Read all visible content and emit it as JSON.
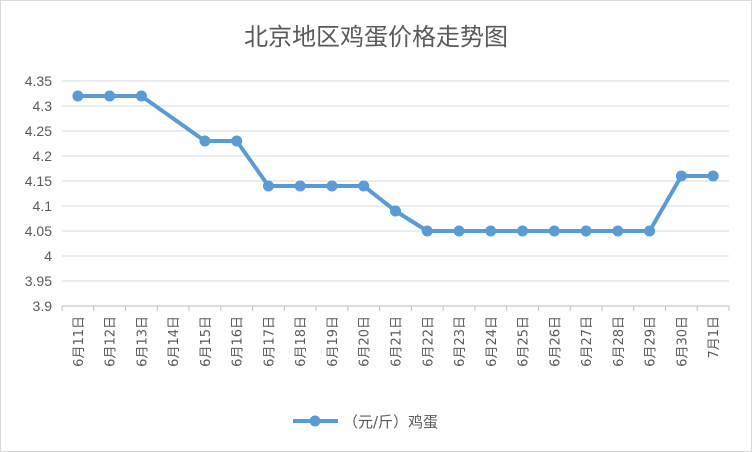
{
  "chart_data": {
    "type": "line",
    "title": "北京地区鸡蛋价格走势图",
    "xlabel": "",
    "ylabel": "",
    "categories": [
      "6月11日",
      "6月12日",
      "6月13日",
      "6月14日",
      "6月15日",
      "6月16日",
      "6月17日",
      "6月18日",
      "6月19日",
      "6月20日",
      "6月21日",
      "6月22日",
      "6月23日",
      "6月24日",
      "6月25日",
      "6月26日",
      "6月27日",
      "6月28日",
      "6月29日",
      "6月30日",
      "7月1日"
    ],
    "series": [
      {
        "name": "（元/斤）鸡蛋",
        "color": "#5b9bd5",
        "values": [
          4.32,
          4.32,
          4.32,
          null,
          4.23,
          4.23,
          4.14,
          4.14,
          4.14,
          4.14,
          4.09,
          4.05,
          4.05,
          4.05,
          4.05,
          4.05,
          4.05,
          4.05,
          4.05,
          4.16,
          4.16
        ]
      }
    ],
    "yticks": [
      "4.35",
      "4.3",
      "4.25",
      "4.2",
      "4.15",
      "4.1",
      "4.05",
      "4",
      "3.95",
      "3.9"
    ],
    "ylim": [
      3.9,
      4.35
    ],
    "grid": true,
    "legend_position": "bottom"
  }
}
